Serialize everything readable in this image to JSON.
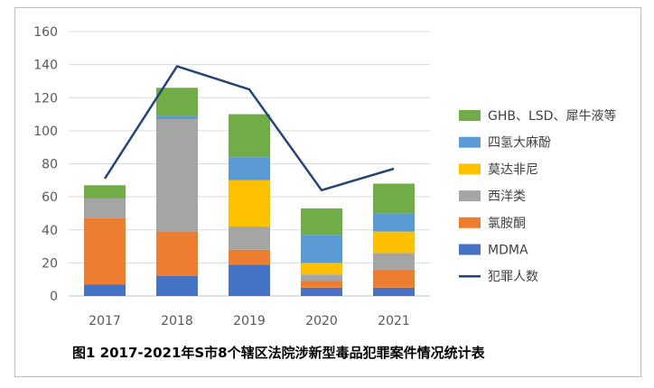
{
  "chart_data": {
    "type": "bar",
    "stacked": true,
    "title": "图1  2017-2021年S市8个辖区法院涉新型毒品犯罪案件情况统计表",
    "categories": [
      "2017",
      "2018",
      "2019",
      "2020",
      "2021"
    ],
    "ylim": [
      0,
      160
    ],
    "yticks": [
      0,
      20,
      40,
      60,
      80,
      100,
      120,
      140,
      160
    ],
    "grid": true,
    "legend_position": "right",
    "series": [
      {
        "name": "MDMA",
        "type": "bar",
        "color": "#4472C4",
        "values": [
          7,
          12,
          19,
          5,
          5
        ]
      },
      {
        "name": "氯胺酮",
        "type": "bar",
        "color": "#ED7D31",
        "values": [
          40,
          27,
          9,
          4,
          11
        ]
      },
      {
        "name": "西洋类",
        "type": "bar",
        "color": "#A5A5A5",
        "values": [
          12,
          68,
          14,
          4,
          10
        ]
      },
      {
        "name": "莫达非尼",
        "type": "bar",
        "color": "#FFC000",
        "values": [
          0,
          0,
          28,
          7,
          13
        ]
      },
      {
        "name": "四氢大麻酚",
        "type": "bar",
        "color": "#5B9BD5",
        "values": [
          0,
          2,
          14,
          17,
          11
        ]
      },
      {
        "name": "GHB、LSD、犀牛液等",
        "type": "bar",
        "color": "#70AD47",
        "values": [
          8,
          17,
          26,
          16,
          18
        ]
      },
      {
        "name": "犯罪人数",
        "type": "line",
        "color": "#264478",
        "values": [
          71,
          139,
          125,
          64,
          77
        ]
      }
    ]
  }
}
